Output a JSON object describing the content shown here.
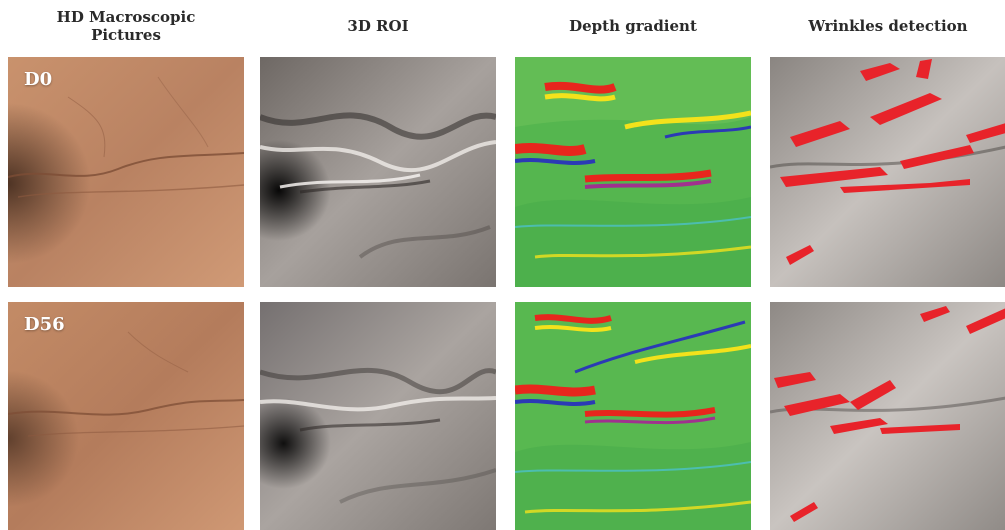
{
  "columns": [
    {
      "title_line1": "HD Macroscopic",
      "title_line2": "Pictures"
    },
    {
      "title_line1": "3D ROI",
      "title_line2": ""
    },
    {
      "title_line1": "Depth gradient",
      "title_line2": ""
    },
    {
      "title_line1": "Wrinkles detection",
      "title_line2": ""
    }
  ],
  "rows": [
    {
      "label": "D0"
    },
    {
      "label": "D56"
    }
  ],
  "colors": {
    "skin": "#c58e6c",
    "wrinkle_detection": "#e8232a",
    "gradient_base": "#52b850"
  }
}
